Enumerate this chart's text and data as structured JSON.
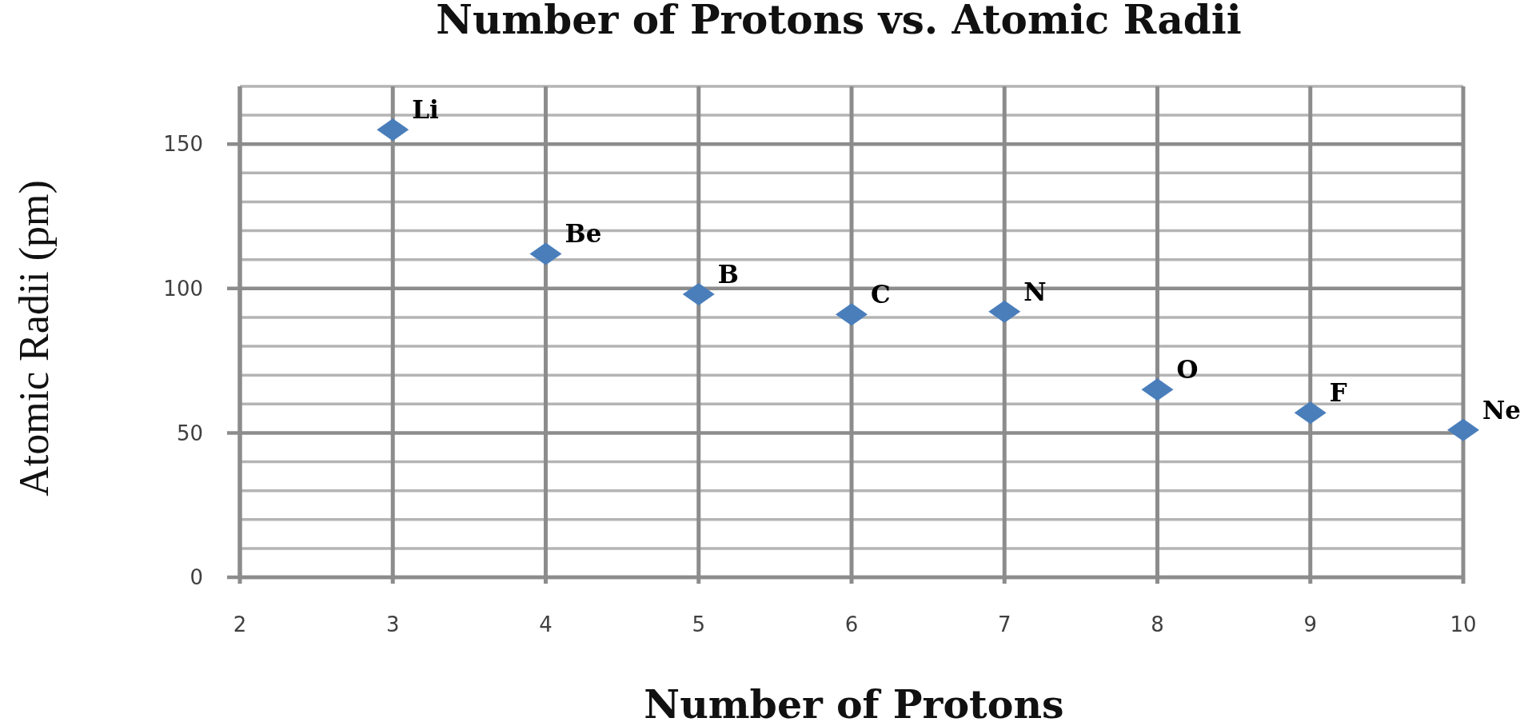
{
  "chart_data": {
    "type": "scatter",
    "title": "Number of Protons vs. Atomic Radii",
    "xlabel": "Number of Protons",
    "ylabel": "Atomic Radii (pm)",
    "x": [
      3,
      4,
      5,
      6,
      7,
      8,
      9,
      10
    ],
    "values": [
      155,
      112,
      98,
      91,
      92,
      65,
      57,
      51
    ],
    "color": "#4a7ebb",
    "marker": "diamond",
    "xlim": [
      2,
      10
    ],
    "xticks": [
      2,
      3,
      4,
      5,
      6,
      7,
      8,
      9,
      10
    ],
    "ylim": [
      0,
      170
    ],
    "yticks": [
      0,
      {
        "value": 10,
        "label": null
      },
      {
        "value": 20,
        "label": null
      },
      {
        "value": 30,
        "label": null
      },
      {
        "value": 40,
        "label": null
      },
      50,
      {
        "value": 60,
        "label": null
      },
      {
        "value": 70,
        "label": null
      },
      {
        "value": 80,
        "label": null
      },
      {
        "value": 90,
        "label": null
      },
      100,
      {
        "value": 110,
        "label": null
      },
      {
        "value": 120,
        "label": null
      },
      {
        "value": 130,
        "label": null
      },
      {
        "value": 140,
        "label": null
      },
      150,
      {
        "value": 160,
        "label": null
      },
      {
        "value": 170,
        "label": null
      }
    ],
    "grid": true,
    "annotations": [
      {
        "text": "Li",
        "x": 3,
        "y": 155
      },
      {
        "text": "Be",
        "x": 4,
        "y": 112
      },
      {
        "text": "B",
        "x": 5,
        "y": 98
      },
      {
        "text": "C",
        "x": 6,
        "y": 91
      },
      {
        "text": "N",
        "x": 7,
        "y": 92
      },
      {
        "text": "O",
        "x": 8,
        "y": 65
      },
      {
        "text": "F",
        "x": 9,
        "y": 57
      },
      {
        "text": "Ne",
        "x": 10,
        "y": 51
      }
    ]
  }
}
